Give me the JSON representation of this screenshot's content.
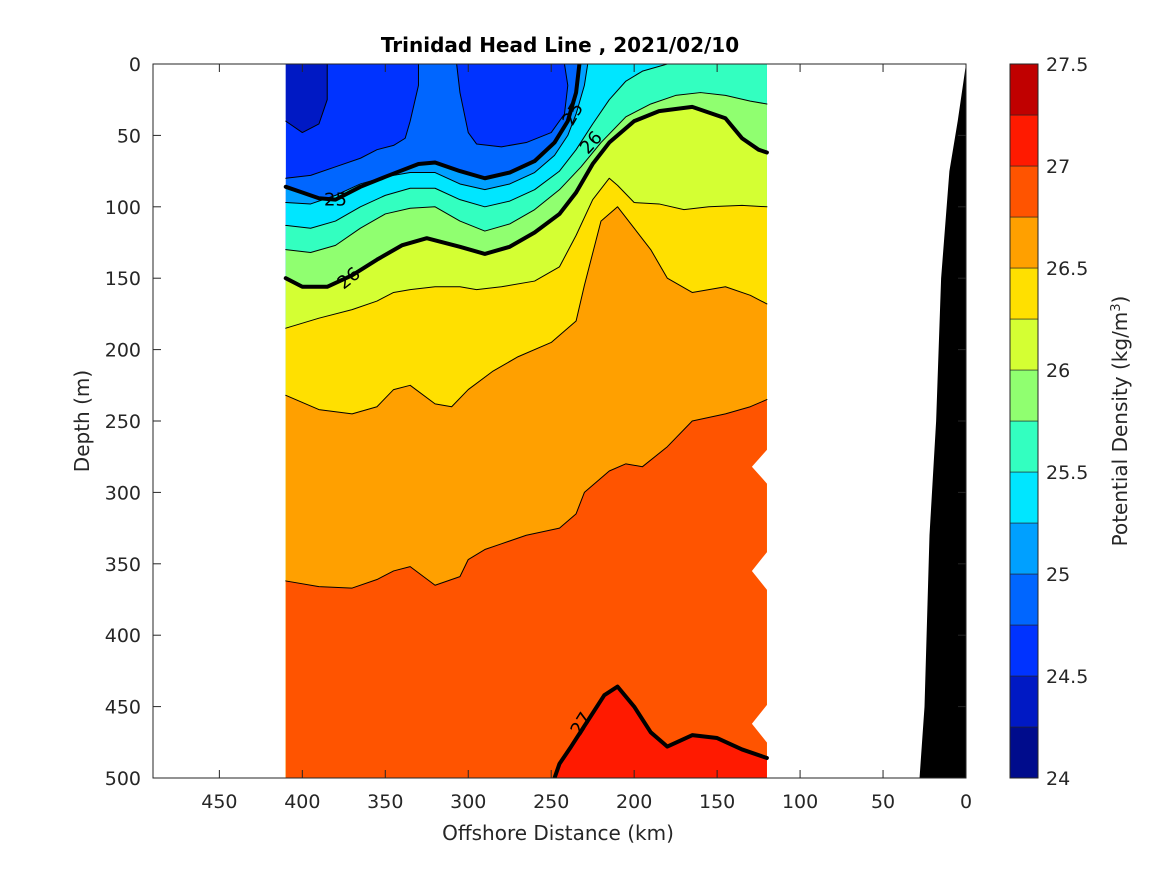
{
  "chart_data": {
    "type": "contour",
    "title": "Trinidad Head Line , 2021/02/10",
    "xlabel": "Offshore Distance (km)",
    "ylabel": "Depth (m)",
    "colorbar_label": "Potential Density (kg/m",
    "colorbar_label_sup": "3",
    "colorbar_label_tail": ")",
    "xlim": [
      490,
      0
    ],
    "ylim": [
      0,
      500
    ],
    "x_reversed": true,
    "y_reversed": true,
    "xticks": [
      450,
      400,
      350,
      300,
      250,
      200,
      150,
      100,
      50,
      0
    ],
    "yticks": [
      0,
      50,
      100,
      150,
      200,
      250,
      300,
      350,
      400,
      450,
      500
    ],
    "colorbar_ticks": [
      24,
      24.5,
      25,
      25.5,
      26,
      26.5,
      27,
      27.5
    ],
    "colorbar_range": [
      24,
      27.5
    ],
    "contour_interval": 0.25,
    "labeled_contours": [
      25,
      26,
      27
    ],
    "section_x_range": [
      410,
      120
    ],
    "levels": [
      {
        "from": 24.0,
        "to": 24.25,
        "color": "#000c8c"
      },
      {
        "from": 24.25,
        "to": 24.5,
        "color": "#0019c4"
      },
      {
        "from": 24.5,
        "to": 24.75,
        "color": "#0033ff"
      },
      {
        "from": 24.75,
        "to": 25.0,
        "color": "#0066ff"
      },
      {
        "from": 25.0,
        "to": 25.25,
        "color": "#00a0ff"
      },
      {
        "from": 25.25,
        "to": 25.5,
        "color": "#00e6ff"
      },
      {
        "from": 25.5,
        "to": 25.75,
        "color": "#33ffc0"
      },
      {
        "from": 25.75,
        "to": 26.0,
        "color": "#90ff70"
      },
      {
        "from": 26.0,
        "to": 26.25,
        "color": "#d4ff33"
      },
      {
        "from": 26.25,
        "to": 26.5,
        "color": "#ffe000"
      },
      {
        "from": 26.5,
        "to": 26.75,
        "color": "#ffa000"
      },
      {
        "from": 26.75,
        "to": 27.0,
        "color": "#ff5400"
      },
      {
        "from": 27.0,
        "to": 27.25,
        "color": "#ff1a00"
      },
      {
        "from": 27.25,
        "to": 27.5,
        "color": "#c00000"
      }
    ],
    "isopycnals": [
      {
        "value": 26.75,
        "points": [
          [
            410,
            362
          ],
          [
            390,
            366
          ],
          [
            370,
            367
          ],
          [
            355,
            361
          ],
          [
            345,
            355
          ],
          [
            335,
            352
          ],
          [
            320,
            365
          ],
          [
            305,
            359
          ],
          [
            300,
            347
          ],
          [
            290,
            340
          ],
          [
            280,
            336
          ],
          [
            265,
            330
          ],
          [
            245,
            325
          ],
          [
            235,
            315
          ],
          [
            230,
            300
          ],
          [
            215,
            285
          ],
          [
            205,
            280
          ],
          [
            195,
            282
          ],
          [
            180,
            268
          ],
          [
            165,
            250
          ],
          [
            145,
            245
          ],
          [
            130,
            240
          ],
          [
            120,
            235
          ]
        ]
      },
      {
        "value": 26.5,
        "points": [
          [
            410,
            232
          ],
          [
            390,
            242
          ],
          [
            370,
            245
          ],
          [
            355,
            240
          ],
          [
            345,
            228
          ],
          [
            335,
            225
          ],
          [
            320,
            238
          ],
          [
            310,
            240
          ],
          [
            300,
            228
          ],
          [
            285,
            215
          ],
          [
            270,
            205
          ],
          [
            250,
            195
          ],
          [
            235,
            180
          ],
          [
            230,
            155
          ],
          [
            220,
            110
          ],
          [
            210,
            100
          ],
          [
            200,
            115
          ],
          [
            190,
            130
          ],
          [
            180,
            150
          ],
          [
            165,
            160
          ],
          [
            145,
            156
          ],
          [
            130,
            162
          ],
          [
            120,
            168
          ]
        ]
      },
      {
        "value": 26.25,
        "points": [
          [
            410,
            185
          ],
          [
            390,
            178
          ],
          [
            370,
            172
          ],
          [
            355,
            166
          ],
          [
            345,
            160
          ],
          [
            335,
            158
          ],
          [
            320,
            156
          ],
          [
            305,
            156
          ],
          [
            295,
            158
          ],
          [
            280,
            156
          ],
          [
            260,
            152
          ],
          [
            245,
            142
          ],
          [
            235,
            120
          ],
          [
            225,
            95
          ],
          [
            215,
            80
          ],
          [
            210,
            85
          ],
          [
            200,
            97
          ],
          [
            185,
            98
          ],
          [
            170,
            102
          ],
          [
            155,
            100
          ],
          [
            135,
            99
          ],
          [
            120,
            100
          ]
        ]
      },
      {
        "value": 26.0,
        "points": [
          [
            410,
            150
          ],
          [
            400,
            156
          ],
          [
            385,
            156
          ],
          [
            370,
            148
          ],
          [
            355,
            137
          ],
          [
            340,
            127
          ],
          [
            325,
            122
          ],
          [
            305,
            128
          ],
          [
            290,
            133
          ],
          [
            275,
            128
          ],
          [
            260,
            118
          ],
          [
            245,
            105
          ],
          [
            235,
            90
          ],
          [
            225,
            70
          ],
          [
            215,
            55
          ],
          [
            200,
            40
          ],
          [
            185,
            33
          ],
          [
            165,
            30
          ],
          [
            145,
            38
          ],
          [
            135,
            52
          ],
          [
            125,
            60
          ],
          [
            120,
            62
          ]
        ]
      },
      {
        "value": 25.75,
        "points": [
          [
            410,
            130
          ],
          [
            395,
            132
          ],
          [
            380,
            127
          ],
          [
            365,
            115
          ],
          [
            350,
            105
          ],
          [
            335,
            101
          ],
          [
            320,
            100
          ],
          [
            305,
            110
          ],
          [
            290,
            117
          ],
          [
            275,
            112
          ],
          [
            260,
            102
          ],
          [
            245,
            88
          ],
          [
            232,
            72
          ],
          [
            220,
            55
          ],
          [
            205,
            37
          ],
          [
            190,
            28
          ],
          [
            175,
            22
          ],
          [
            160,
            20
          ],
          [
            145,
            22
          ],
          [
            130,
            26
          ],
          [
            120,
            28
          ]
        ]
      },
      {
        "value": 25.5,
        "points": [
          [
            410,
            113
          ],
          [
            395,
            115
          ],
          [
            380,
            110
          ],
          [
            365,
            100
          ],
          [
            350,
            92
          ],
          [
            335,
            87
          ],
          [
            320,
            87
          ],
          [
            305,
            95
          ],
          [
            290,
            100
          ],
          [
            275,
            96
          ],
          [
            260,
            88
          ],
          [
            245,
            75
          ],
          [
            235,
            60
          ],
          [
            225,
            42
          ],
          [
            215,
            25
          ],
          [
            205,
            12
          ],
          [
            195,
            5
          ],
          [
            180,
            0
          ]
        ]
      },
      {
        "value": 25.25,
        "points": [
          [
            410,
            97
          ],
          [
            395,
            98
          ],
          [
            380,
            92
          ],
          [
            365,
            84
          ],
          [
            350,
            79
          ],
          [
            335,
            76
          ],
          [
            320,
            76
          ],
          [
            305,
            84
          ],
          [
            290,
            88
          ],
          [
            275,
            84
          ],
          [
            260,
            76
          ],
          [
            248,
            64
          ],
          [
            240,
            50
          ],
          [
            235,
            35
          ],
          [
            230,
            15
          ],
          [
            228,
            0
          ]
        ]
      },
      {
        "value": 25.0,
        "points": [
          [
            410,
            86
          ],
          [
            400,
            90
          ],
          [
            390,
            94
          ],
          [
            380,
            95
          ],
          [
            365,
            86
          ],
          [
            350,
            79
          ],
          [
            330,
            70
          ],
          [
            320,
            69
          ],
          [
            305,
            75
          ],
          [
            290,
            80
          ],
          [
            275,
            76
          ],
          [
            260,
            68
          ],
          [
            248,
            55
          ],
          [
            240,
            40
          ],
          [
            235,
            20
          ],
          [
            233,
            0
          ]
        ]
      },
      {
        "value": 24.75,
        "points": [
          [
            410,
            80
          ],
          [
            395,
            78
          ],
          [
            380,
            72
          ],
          [
            365,
            66
          ],
          [
            355,
            60
          ],
          [
            345,
            57
          ],
          [
            338,
            52
          ],
          [
            335,
            40
          ],
          [
            330,
            15
          ],
          [
            330,
            0
          ]
        ]
      },
      {
        "value": 24.75,
        "points": [
          [
            307,
            0
          ],
          [
            305,
            20
          ],
          [
            300,
            48
          ],
          [
            295,
            56
          ],
          [
            280,
            58
          ],
          [
            265,
            55
          ],
          [
            250,
            48
          ],
          [
            242,
            35
          ],
          [
            240,
            15
          ],
          [
            242,
            0
          ]
        ]
      },
      {
        "value": 24.5,
        "points": [
          [
            410,
            40
          ],
          [
            400,
            48
          ],
          [
            390,
            42
          ],
          [
            385,
            25
          ],
          [
            385,
            0
          ]
        ]
      },
      {
        "value": 27.0,
        "points": [
          [
            248,
            500
          ],
          [
            245,
            490
          ],
          [
            238,
            478
          ],
          [
            228,
            460
          ],
          [
            218,
            442
          ],
          [
            210,
            436
          ],
          [
            200,
            450
          ],
          [
            190,
            468
          ],
          [
            180,
            478
          ],
          [
            165,
            470
          ],
          [
            150,
            472
          ],
          [
            135,
            480
          ],
          [
            120,
            486
          ]
        ]
      }
    ],
    "bathymetry": [
      [
        0,
        0
      ],
      [
        5,
        40
      ],
      [
        10,
        75
      ],
      [
        15,
        150
      ],
      [
        18,
        250
      ],
      [
        22,
        330
      ],
      [
        25,
        450
      ],
      [
        28,
        500
      ],
      [
        0,
        500
      ]
    ]
  }
}
